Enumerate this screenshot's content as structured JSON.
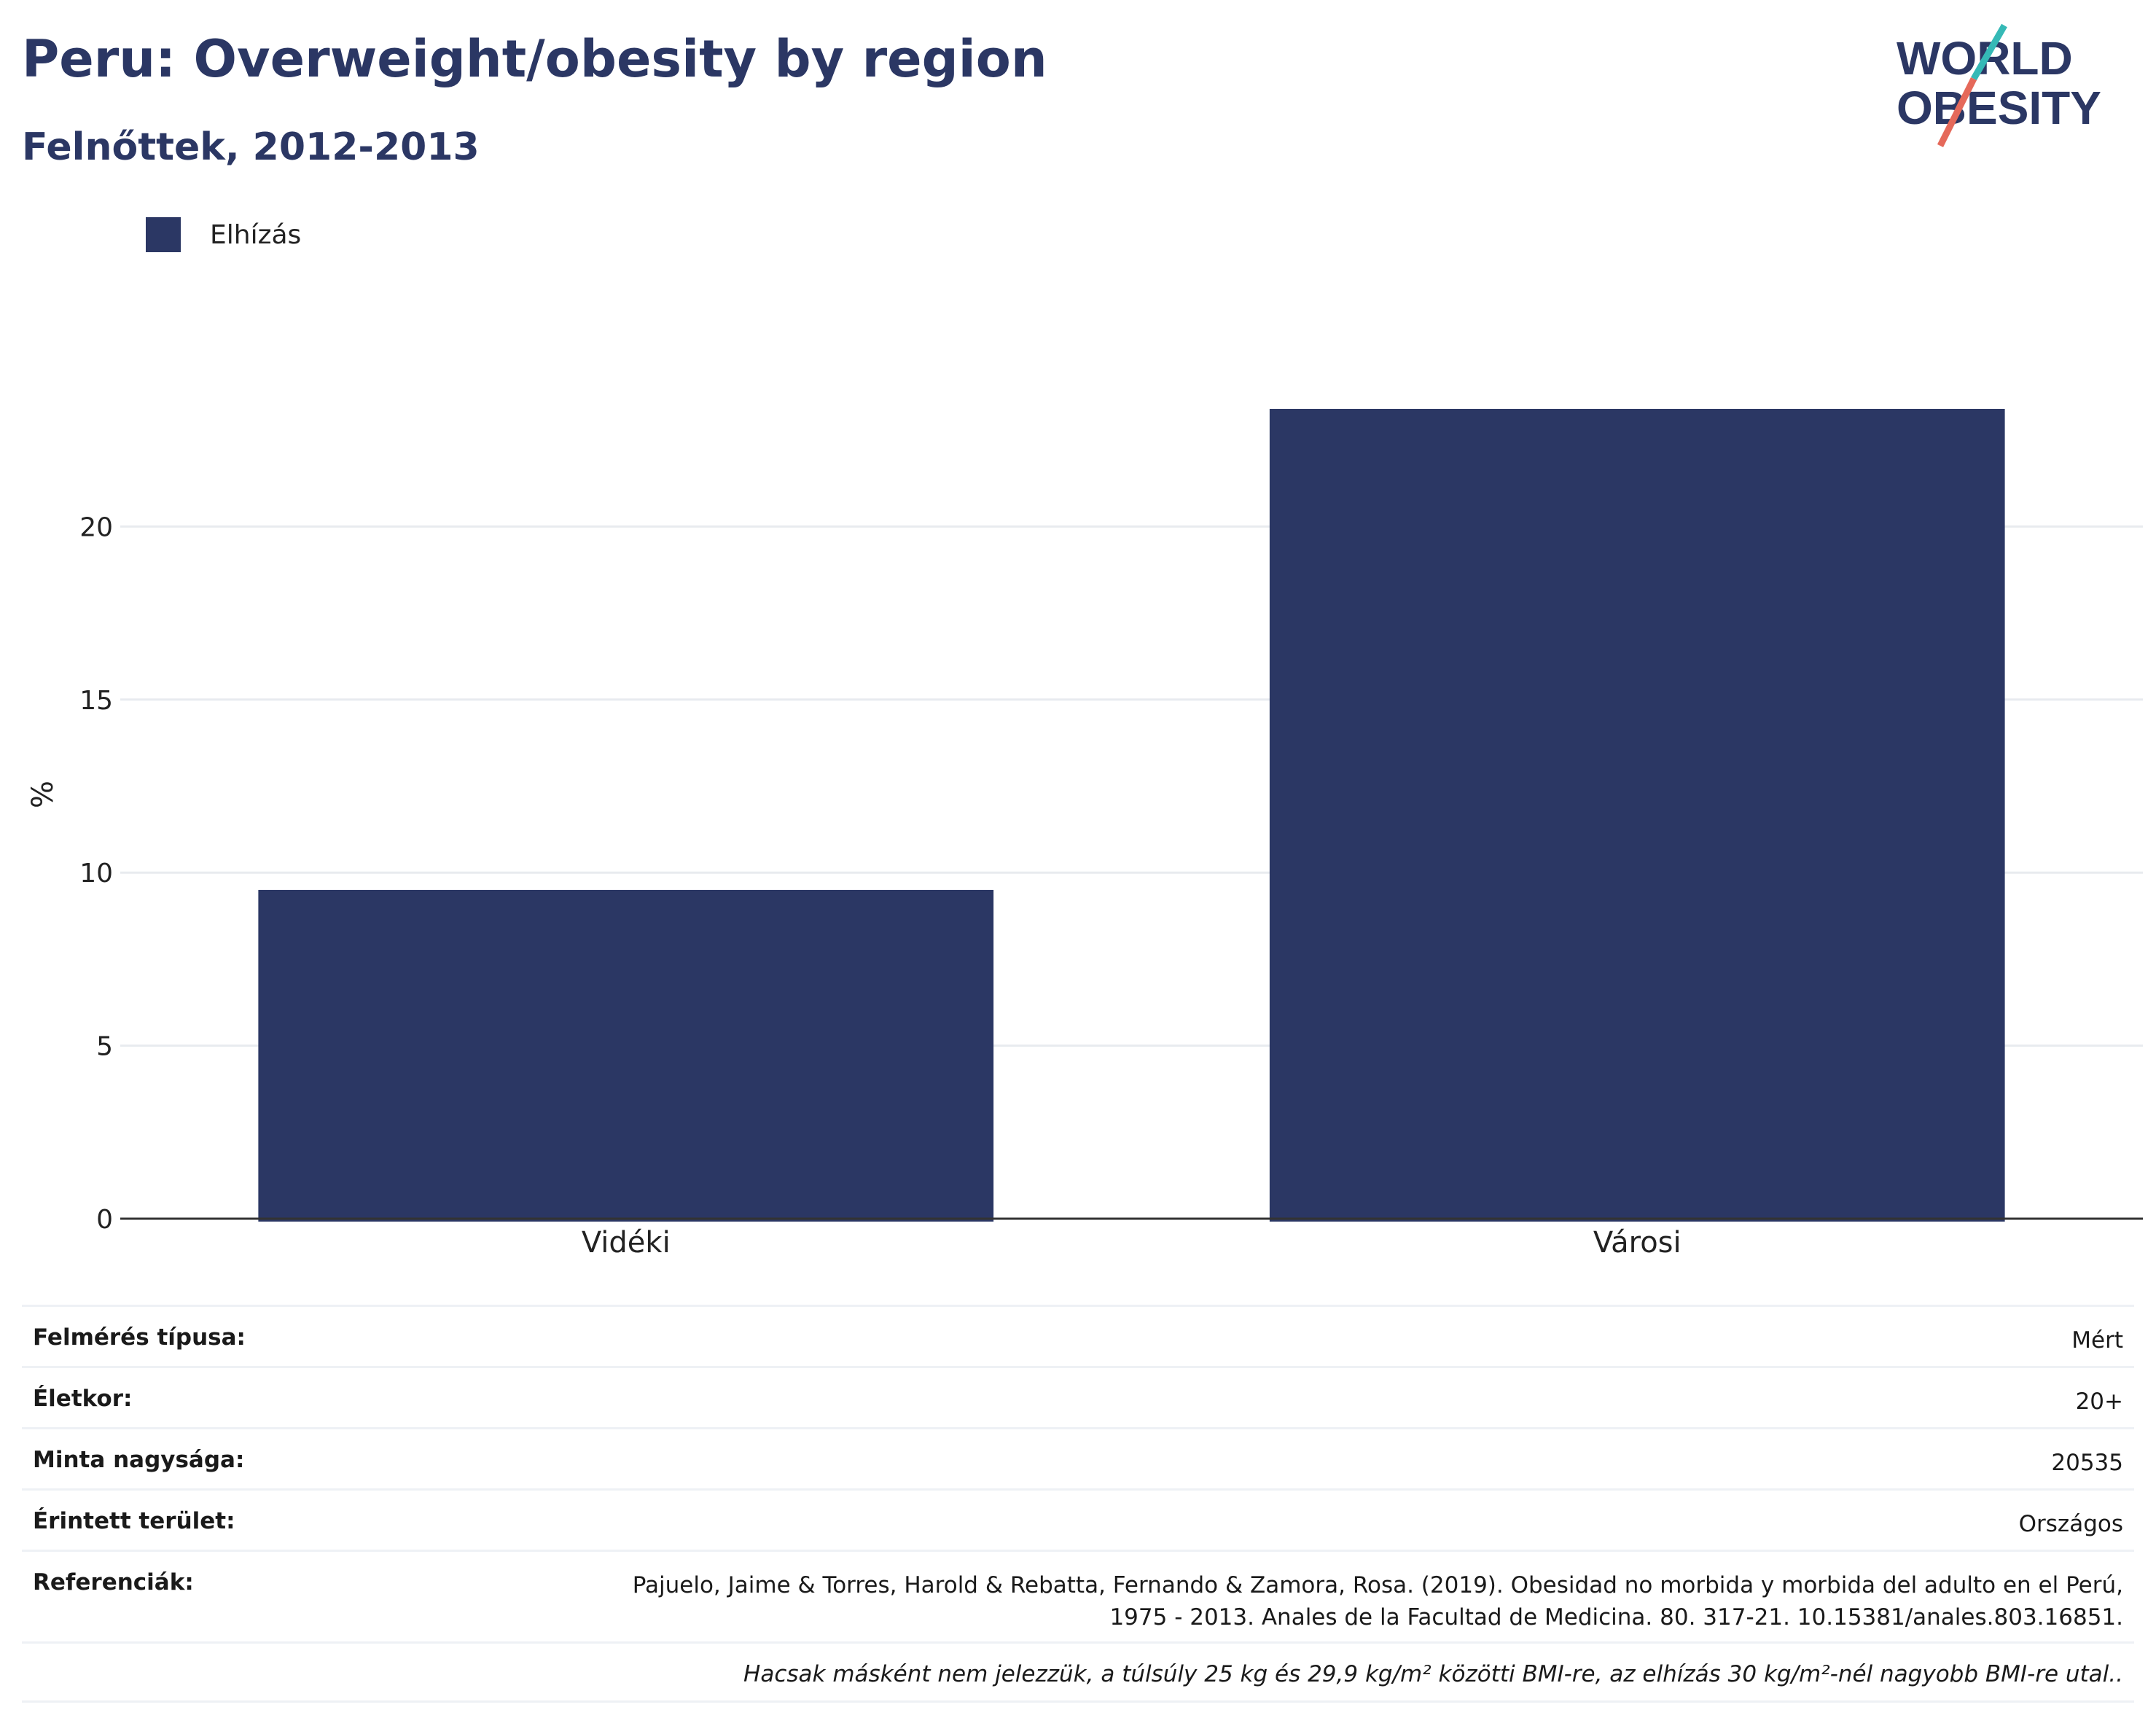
{
  "header": {
    "title": "Peru: Overweight/obesity by region",
    "subtitle": "Felnőttek, 2012-2013"
  },
  "logo": {
    "line1": "WORLD",
    "line2": "OBESITY",
    "slash_colors": [
      "#35b9b6",
      "#e5695a"
    ]
  },
  "legend": {
    "label": "Elhízás",
    "color": "#2b3764"
  },
  "chart_data": {
    "type": "bar",
    "title": "Peru: Overweight/obesity by region",
    "subtitle": "Felnőttek, 2012-2013",
    "categories": [
      "Vidéki",
      "Városi"
    ],
    "series": [
      {
        "name": "Elhízás",
        "values": [
          9.5,
          23.4
        ],
        "color": "#2b3764"
      }
    ],
    "xlabel": "",
    "ylabel": "%",
    "ylim": [
      0,
      25
    ],
    "yticks": [
      0,
      5,
      10,
      15,
      20
    ],
    "grid": true,
    "legend_position": "top-left"
  },
  "info_table": [
    {
      "label": "Felmérés típusa:",
      "value": "Mért"
    },
    {
      "label": "Életkor:",
      "value": "20+"
    },
    {
      "label": "Minta nagysága:",
      "value": "20535"
    },
    {
      "label": "Érintett terület:",
      "value": "Országos"
    },
    {
      "label": "Referenciák:",
      "value_lines": [
        "Pajuelo, Jaime & Torres, Harold & Rebatta, Fernando & Zamora, Rosa. (2019). Obesidad no morbida y morbida del adulto en el Perú,",
        "1975 - 2013. Anales de la Facultad de Medicina. 80. 317-21. 10.15381/anales.803.16851."
      ]
    }
  ],
  "footnote": "Hacsak másként nem jelezzük, a túlsúly 25 kg és 29,9 kg/m² közötti BMI-re, az elhízás 30 kg/m²-nél nagyobb BMI-re utal.."
}
